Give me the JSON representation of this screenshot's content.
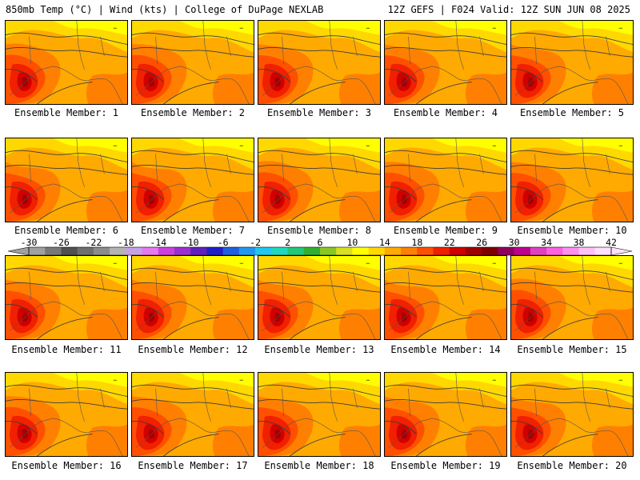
{
  "header": {
    "left": "850mb Temp (°C) | Wind (kts) | College of DuPage NEXLAB",
    "right": "12Z GEFS | F024 Valid: 12Z SUN JUN 08 2025"
  },
  "panels": [
    {
      "label": "Ensemble Member: 1"
    },
    {
      "label": "Ensemble Member: 2"
    },
    {
      "label": "Ensemble Member: 3"
    },
    {
      "label": "Ensemble Member: 4"
    },
    {
      "label": "Ensemble Member: 5"
    },
    {
      "label": "Ensemble Member: 6"
    },
    {
      "label": "Ensemble Member: 7"
    },
    {
      "label": "Ensemble Member: 8"
    },
    {
      "label": "Ensemble Member: 9"
    },
    {
      "label": "Ensemble Member: 10"
    },
    {
      "label": "Ensemble Member: 11"
    },
    {
      "label": "Ensemble Member: 12"
    },
    {
      "label": "Ensemble Member: 13"
    },
    {
      "label": "Ensemble Member: 14"
    },
    {
      "label": "Ensemble Member: 15"
    },
    {
      "label": "Ensemble Member: 16"
    },
    {
      "label": "Ensemble Member: 17"
    },
    {
      "label": "Ensemble Member: 18"
    },
    {
      "label": "Ensemble Member: 19"
    },
    {
      "label": "Ensemble Member: 20"
    }
  ],
  "colorbar": {
    "ticks": [
      "-30",
      "-26",
      "-22",
      "-18",
      "-14",
      "-10",
      "-6",
      "-2",
      "2",
      "6",
      "10",
      "14",
      "18",
      "22",
      "26",
      "30",
      "34",
      "38",
      "42"
    ],
    "colors": [
      "#a0a0a0",
      "#787878",
      "#505050",
      "#6e6e6e",
      "#8c8c8c",
      "#b4b4b4",
      "#c8a0e6",
      "#e678f0",
      "#cc40e0",
      "#9a30d0",
      "#6020c0",
      "#2020c8",
      "#2060e0",
      "#2098f0",
      "#20c8f0",
      "#20d8c0",
      "#20c878",
      "#30b030",
      "#88c820",
      "#d8e020",
      "#ffff00",
      "#ffd800",
      "#ffaa00",
      "#ff8000",
      "#ff5000",
      "#f02000",
      "#d00000",
      "#a00000",
      "#800000",
      "#900060",
      "#c00090",
      "#e040c0",
      "#ff60e0",
      "#ff90f0",
      "#ffc0f8",
      "#ffe0fc"
    ]
  }
}
